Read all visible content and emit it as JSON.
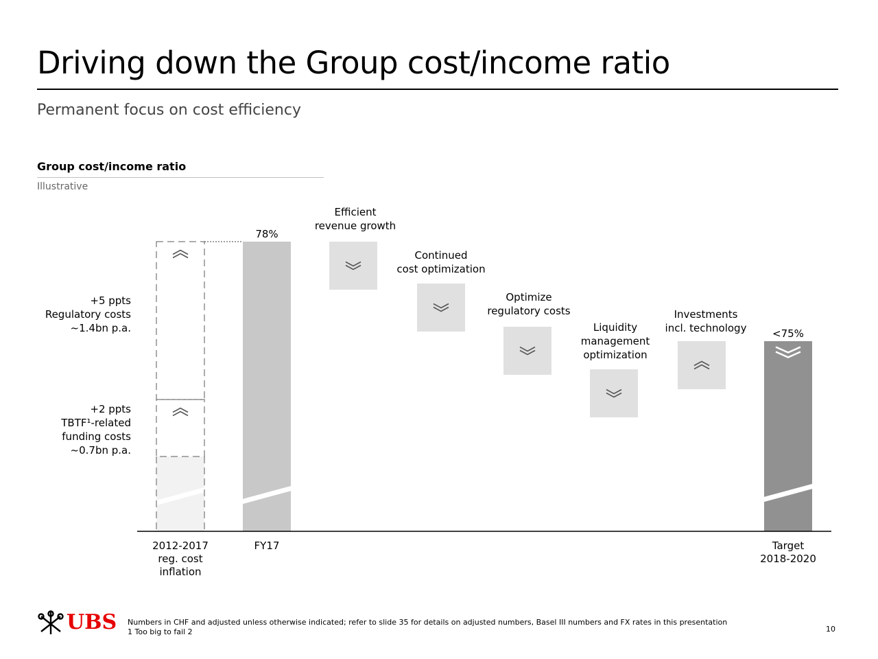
{
  "header": {
    "title": "Driving down the Group cost/income ratio",
    "subtitle": "Permanent focus on cost efficiency"
  },
  "chart_data": {
    "type": "waterfall",
    "title": "Group cost/income ratio",
    "note": "Illustrative",
    "start_value_label": "78%",
    "end_value_label": "<75%",
    "categories": [
      {
        "name": "inflation",
        "lines": [
          "2012-2017",
          "reg. cost",
          "inflation"
        ]
      },
      {
        "name": "fy17",
        "lines": [
          "FY17"
        ]
      },
      {
        "name": "revenue",
        "lines": []
      },
      {
        "name": "cost",
        "lines": []
      },
      {
        "name": "regulatory",
        "lines": []
      },
      {
        "name": "liquidity",
        "lines": []
      },
      {
        "name": "investments",
        "lines": []
      },
      {
        "name": "target",
        "lines": [
          "Target",
          "2018-2020"
        ]
      }
    ],
    "segments": [
      {
        "name": "regulatory-costs",
        "direction": "up",
        "style": "dashed",
        "lines": [
          "+5 ppts",
          "Regulatory costs",
          "~1.4bn p.a."
        ]
      },
      {
        "name": "tbtf-funding",
        "direction": "up",
        "style": "dashed",
        "lines": [
          "+2 ppts",
          "TBTF¹-related",
          "funding costs",
          "~0.7bn p.a."
        ]
      },
      {
        "name": "fy17-bar",
        "direction": "total",
        "style": "solid",
        "value_label": "78%"
      },
      {
        "name": "efficient-revenue",
        "direction": "down",
        "style": "solid",
        "lines": [
          "Efficient",
          "revenue growth"
        ]
      },
      {
        "name": "cost-optimization",
        "direction": "down",
        "style": "solid",
        "lines": [
          "Continued",
          "cost optimization"
        ]
      },
      {
        "name": "regulatory-costs-opt",
        "direction": "down",
        "style": "solid",
        "lines": [
          "Optimize",
          "regulatory costs"
        ]
      },
      {
        "name": "liquidity-management",
        "direction": "down",
        "style": "solid",
        "lines": [
          "Liquidity",
          "management",
          "optimization"
        ]
      },
      {
        "name": "investments",
        "direction": "up",
        "style": "solid",
        "lines": [
          "Investments",
          "incl. technology"
        ]
      },
      {
        "name": "target-bar",
        "direction": "total",
        "style": "solid",
        "value_label": "<75%"
      }
    ],
    "colors": {
      "fy17_bar": "#c8c8c8",
      "step_box": "#e0e0e0",
      "target_bar": "#919191",
      "inflation_base": "#f2f2f2",
      "dashed": "#909090",
      "chevron": "#555555"
    }
  },
  "footer": {
    "logo_text": "UBS",
    "logo_color": "#e60000",
    "note_line1": "Numbers in CHF and adjusted unless otherwise indicated; refer to slide 35 for details on adjusted numbers, Basel III numbers and FX rates in this presentation",
    "note_line2": "1 Too big to fail 2",
    "page_number": "10"
  }
}
